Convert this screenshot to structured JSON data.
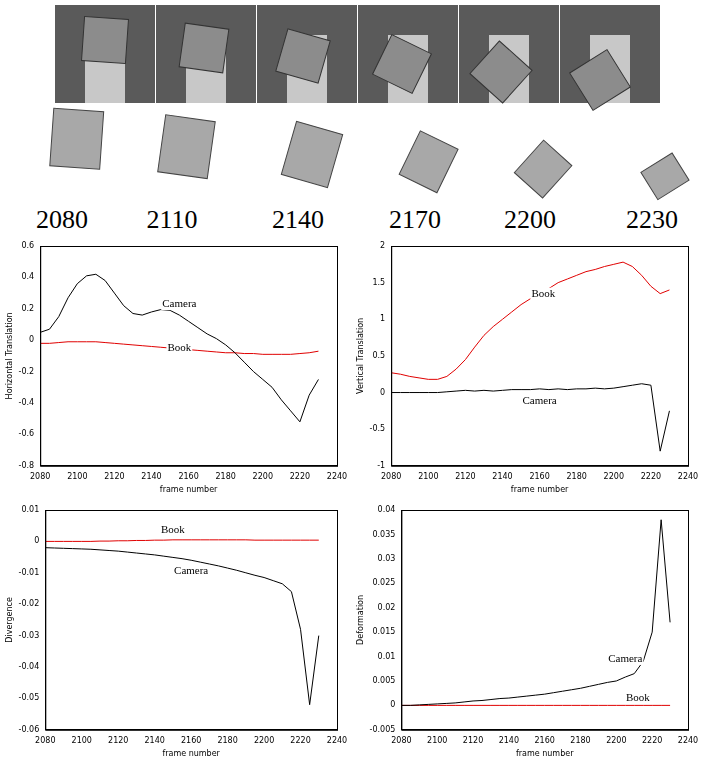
{
  "image_strip": {
    "frame_labels": [
      2080,
      2110,
      2140,
      2170,
      2200,
      2230
    ]
  },
  "chart_data": [
    {
      "type": "line",
      "x_label": "frame number",
      "y_label": "Horizontal Translation",
      "x": [
        2080,
        2085,
        2090,
        2095,
        2100,
        2105,
        2110,
        2115,
        2120,
        2125,
        2130,
        2135,
        2140,
        2145,
        2150,
        2155,
        2160,
        2165,
        2170,
        2175,
        2180,
        2185,
        2190,
        2195,
        2200,
        2205,
        2210,
        2215,
        2220,
        2225,
        2230
      ],
      "series": [
        {
          "name": "Camera",
          "color": "#000000",
          "values": [
            0.05,
            0.07,
            0.15,
            0.27,
            0.36,
            0.41,
            0.42,
            0.38,
            0.3,
            0.22,
            0.17,
            0.16,
            0.18,
            0.195,
            0.19,
            0.16,
            0.12,
            0.08,
            0.04,
            0.01,
            -0.03,
            -0.08,
            -0.14,
            -0.2,
            -0.25,
            -0.3,
            -0.38,
            -0.45,
            -0.52,
            -0.35,
            -0.25
          ]
        },
        {
          "name": "Book",
          "color": "#e00000",
          "values": [
            -0.02,
            -0.02,
            -0.015,
            -0.01,
            -0.01,
            -0.01,
            -0.01,
            -0.015,
            -0.02,
            -0.025,
            -0.03,
            -0.035,
            -0.04,
            -0.045,
            -0.05,
            -0.055,
            -0.06,
            -0.065,
            -0.07,
            -0.075,
            -0.08,
            -0.08,
            -0.085,
            -0.085,
            -0.09,
            -0.09,
            -0.09,
            -0.09,
            -0.085,
            -0.08,
            -0.07
          ]
        }
      ],
      "annotations": [
        {
          "text": "Camera",
          "x": 2155,
          "y": 0.23
        },
        {
          "text": "Book",
          "x": 2155,
          "y": -0.05
        }
      ],
      "xlim": [
        2080,
        2240
      ],
      "xticks": [
        2080,
        2100,
        2120,
        2140,
        2160,
        2180,
        2200,
        2220,
        2240
      ],
      "ylim": [
        -0.8,
        0.6
      ],
      "yticks": [
        -0.8,
        -0.6,
        -0.4,
        -0.2,
        0,
        0.2,
        0.4,
        0.6
      ],
      "grid": false
    },
    {
      "type": "line",
      "x_label": "frame number",
      "y_label": "Vertical Translation",
      "x": [
        2080,
        2085,
        2090,
        2095,
        2100,
        2105,
        2110,
        2115,
        2120,
        2125,
        2130,
        2135,
        2140,
        2145,
        2150,
        2155,
        2160,
        2165,
        2170,
        2175,
        2180,
        2185,
        2190,
        2195,
        2200,
        2205,
        2210,
        2215,
        2220,
        2225,
        2230
      ],
      "series": [
        {
          "name": "Book",
          "color": "#e00000",
          "values": [
            0.27,
            0.25,
            0.22,
            0.2,
            0.18,
            0.18,
            0.22,
            0.32,
            0.45,
            0.62,
            0.78,
            0.9,
            1.0,
            1.1,
            1.2,
            1.28,
            1.35,
            1.42,
            1.5,
            1.55,
            1.6,
            1.65,
            1.68,
            1.72,
            1.75,
            1.78,
            1.72,
            1.6,
            1.45,
            1.35,
            1.4
          ]
        },
        {
          "name": "Camera",
          "color": "#000000",
          "values": [
            0,
            0,
            0,
            0,
            0,
            0,
            0.01,
            0.02,
            0.03,
            0.02,
            0.03,
            0.02,
            0.03,
            0.04,
            0.04,
            0.04,
            0.05,
            0.04,
            0.05,
            0.04,
            0.05,
            0.05,
            0.06,
            0.05,
            0.06,
            0.08,
            0.1,
            0.12,
            0.1,
            -0.8,
            -0.25
          ]
        }
      ],
      "annotations": [
        {
          "text": "Book",
          "x": 2162,
          "y": 1.35
        },
        {
          "text": "Camera",
          "x": 2160,
          "y": -0.12
        }
      ],
      "xlim": [
        2080,
        2240
      ],
      "xticks": [
        2080,
        2100,
        2120,
        2140,
        2160,
        2180,
        2200,
        2220,
        2240
      ],
      "ylim": [
        -1,
        2
      ],
      "yticks": [
        -1,
        -0.5,
        0,
        0.5,
        1,
        1.5,
        2
      ],
      "grid": false
    },
    {
      "type": "line",
      "x_label": "frame number",
      "y_label": "Divergence",
      "x": [
        2080,
        2085,
        2090,
        2095,
        2100,
        2105,
        2110,
        2115,
        2120,
        2125,
        2130,
        2135,
        2140,
        2145,
        2150,
        2155,
        2160,
        2165,
        2170,
        2175,
        2180,
        2185,
        2190,
        2195,
        2200,
        2205,
        2210,
        2215,
        2220,
        2225,
        2230
      ],
      "series": [
        {
          "name": "Book",
          "color": "#e00000",
          "values": [
            0,
            0,
            0,
            0,
            0,
            0,
            0.0001,
            0.0001,
            0.0002,
            0.0002,
            0.0003,
            0.0003,
            0.0004,
            0.0004,
            0.0005,
            0.0005,
            0.0005,
            0.0005,
            0.0005,
            0.0005,
            0.0005,
            0.0005,
            0.0005,
            0.0004,
            0.0004,
            0.0004,
            0.0004,
            0.0004,
            0.0004,
            0.0004,
            0.0004
          ]
        },
        {
          "name": "Camera",
          "color": "#000000",
          "values": [
            -0.002,
            -0.0021,
            -0.0022,
            -0.0023,
            -0.0024,
            -0.0025,
            -0.0027,
            -0.0029,
            -0.0031,
            -0.0034,
            -0.0037,
            -0.004,
            -0.0043,
            -0.0047,
            -0.0051,
            -0.0055,
            -0.006,
            -0.0066,
            -0.0072,
            -0.0078,
            -0.0085,
            -0.0092,
            -0.01,
            -0.0108,
            -0.0115,
            -0.0125,
            -0.0135,
            -0.016,
            -0.028,
            -0.052,
            -0.03
          ]
        }
      ],
      "annotations": [
        {
          "text": "Book",
          "x": 2150,
          "y": 0.0035
        },
        {
          "text": "Camera",
          "x": 2160,
          "y": -0.0095
        }
      ],
      "xlim": [
        2080,
        2240
      ],
      "xticks": [
        2080,
        2100,
        2120,
        2140,
        2160,
        2180,
        2200,
        2220,
        2240
      ],
      "ylim": [
        -0.06,
        0.01
      ],
      "yticks": [
        -0.06,
        -0.05,
        -0.04,
        -0.03,
        -0.02,
        -0.01,
        0,
        0.01
      ],
      "grid": false
    },
    {
      "type": "line",
      "x_label": "frame number",
      "y_label": "Deformation",
      "x": [
        2080,
        2085,
        2090,
        2095,
        2100,
        2105,
        2110,
        2115,
        2120,
        2125,
        2130,
        2135,
        2140,
        2145,
        2150,
        2155,
        2160,
        2165,
        2170,
        2175,
        2180,
        2185,
        2190,
        2195,
        2200,
        2205,
        2210,
        2215,
        2220,
        2225,
        2230
      ],
      "series": [
        {
          "name": "Camera",
          "color": "#000000",
          "values": [
            0,
            0,
            0.0001,
            0.0002,
            0.0003,
            0.0004,
            0.0005,
            0.0007,
            0.0009,
            0.001,
            0.0012,
            0.0014,
            0.0015,
            0.0017,
            0.0019,
            0.0021,
            0.0023,
            0.0026,
            0.0029,
            0.0032,
            0.0035,
            0.0039,
            0.0043,
            0.0047,
            0.005,
            0.0058,
            0.0065,
            0.009,
            0.015,
            0.038,
            0.017
          ]
        },
        {
          "name": "Book",
          "color": "#e00000",
          "values": [
            0,
            0,
            0,
            0,
            0,
            0,
            0,
            0,
            0,
            0,
            0,
            0,
            0,
            0,
            0,
            0,
            0,
            0,
            0,
            0,
            0,
            0,
            0,
            0,
            0,
            0,
            0,
            0,
            0,
            0,
            0
          ]
        }
      ],
      "annotations": [
        {
          "text": "Camera",
          "x": 2205,
          "y": 0.0095
        },
        {
          "text": "Book",
          "x": 2212,
          "y": 0.0015
        }
      ],
      "xlim": [
        2080,
        2240
      ],
      "xticks": [
        2080,
        2100,
        2120,
        2140,
        2160,
        2180,
        2200,
        2220,
        2240
      ],
      "ylim": [
        -0.005,
        0.04
      ],
      "yticks": [
        -0.005,
        0,
        0.005,
        0.01,
        0.015,
        0.02,
        0.025,
        0.03,
        0.035,
        0.04
      ],
      "grid": false
    }
  ]
}
